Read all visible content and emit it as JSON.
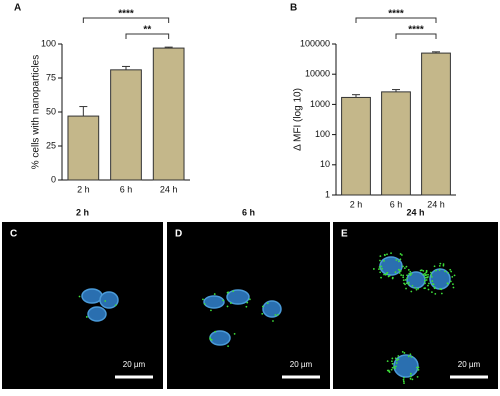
{
  "chart_data": [
    {
      "type": "bar",
      "panel": "A",
      "y_label": "% cells with nanoparticles",
      "categories": [
        "2 h",
        "6 h",
        "24 h"
      ],
      "values": [
        47,
        81,
        97
      ],
      "errors": [
        7,
        2.5,
        0.7
      ],
      "color": "#c4b78a",
      "ylim": [
        0,
        100
      ],
      "yticks": [
        0,
        25,
        50,
        75,
        100
      ],
      "log_scale": false,
      "annotations": [
        {
          "text": "****",
          "between": [
            "2 h",
            "24 h"
          ]
        },
        {
          "text": "**",
          "between": [
            "6 h",
            "24 h"
          ]
        }
      ]
    },
    {
      "type": "bar",
      "panel": "B",
      "y_label": "Δ MFI (log 10)",
      "categories": [
        "2 h",
        "6 h",
        "24 h"
      ],
      "values": [
        1700,
        2600,
        50000
      ],
      "errors": [
        400,
        500,
        5000
      ],
      "color": "#c4b78a",
      "ylim": [
        1,
        100000
      ],
      "yticks": [
        1,
        10,
        100,
        1000,
        10000,
        100000
      ],
      "log_scale": true,
      "annotations": [
        {
          "text": "****",
          "between": [
            "2 h",
            "24 h"
          ]
        },
        {
          "text": "****",
          "between": [
            "6 h",
            "24 h"
          ]
        }
      ]
    }
  ],
  "images": [
    {
      "label": "C",
      "time": "2 h",
      "scale_bar": "20 µm"
    },
    {
      "label": "D",
      "time": "6 h",
      "scale_bar": "20 µm"
    },
    {
      "label": "E",
      "time": "24 h",
      "scale_bar": "20 µm"
    }
  ]
}
